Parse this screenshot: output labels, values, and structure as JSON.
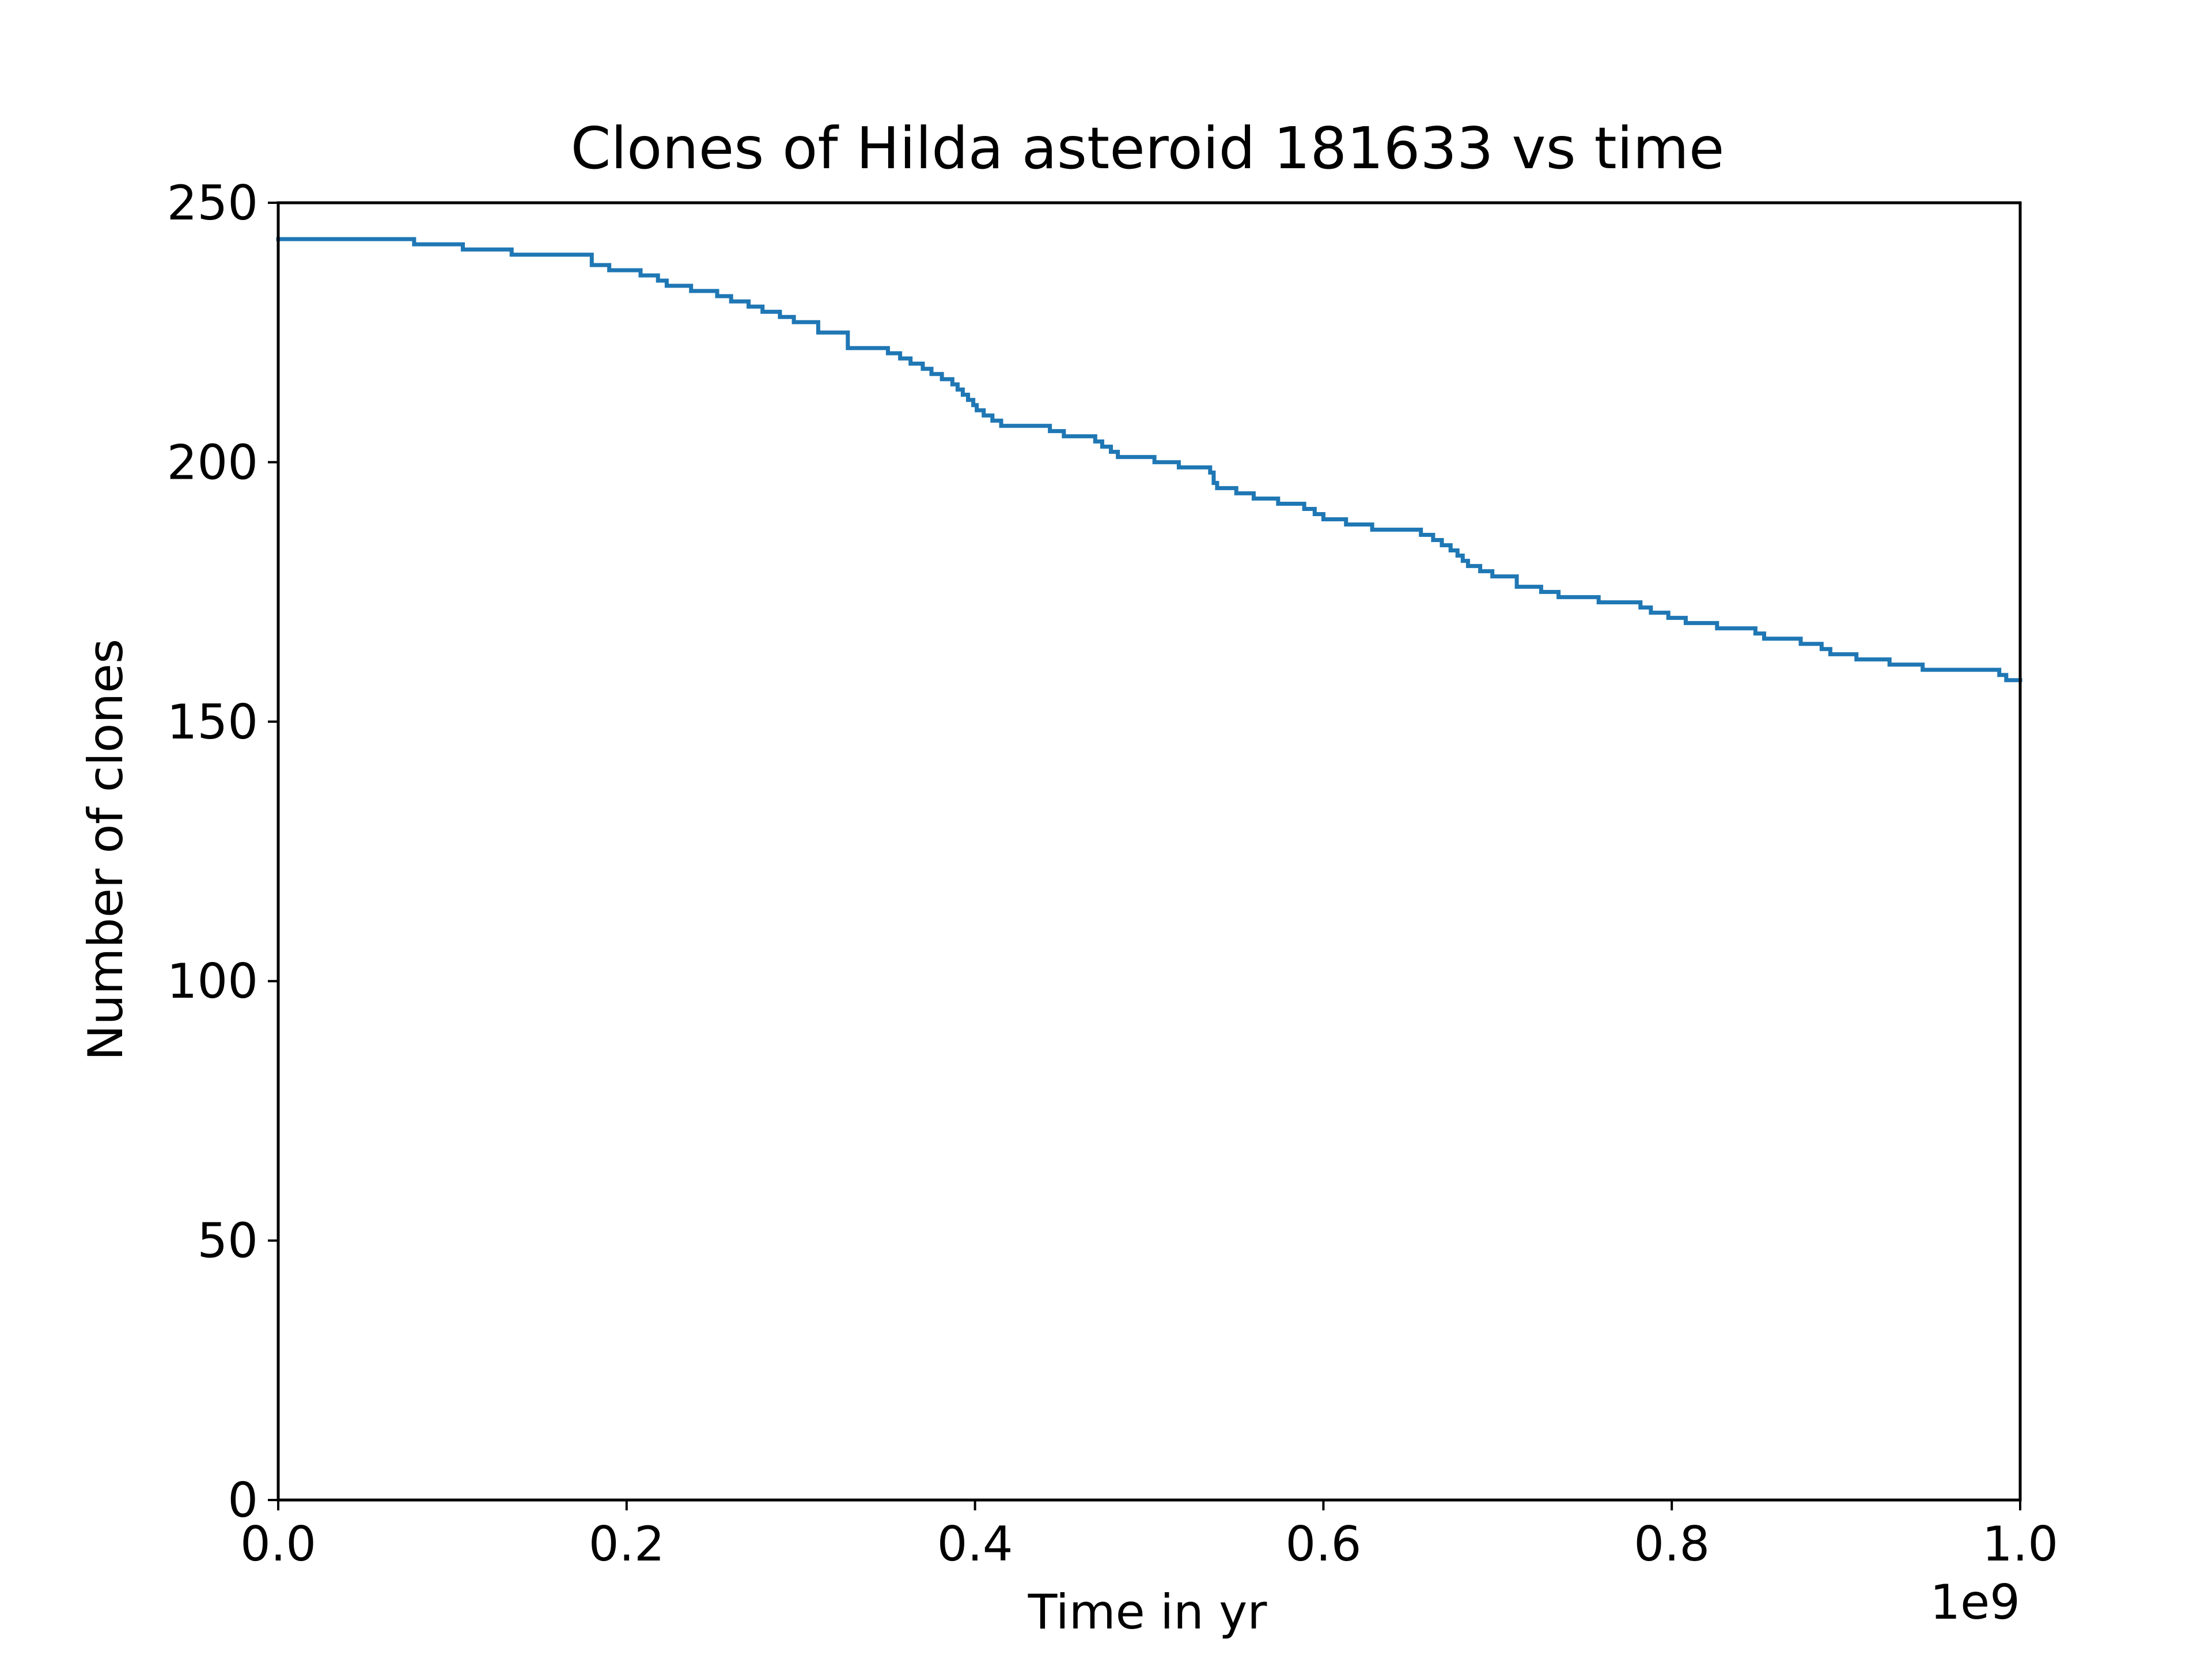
{
  "chart_data": {
    "type": "line",
    "title": "Clones of Hilda asteroid 181633 vs time",
    "xlabel": "Time in yr",
    "ylabel": "Number of clones",
    "x_offset_label": "1e9",
    "xlim": [
      0,
      1000000000
    ],
    "ylim": [
      0,
      250
    ],
    "xticks": [
      0,
      200000000,
      400000000,
      600000000,
      800000000,
      1000000000
    ],
    "xtick_labels": [
      "0.0",
      "0.2",
      "0.4",
      "0.6",
      "0.8",
      "1.0"
    ],
    "yticks": [
      0,
      50,
      100,
      150,
      200,
      250
    ],
    "ytick_labels": [
      "0",
      "50",
      "100",
      "150",
      "200",
      "250"
    ],
    "grid": false,
    "step": true,
    "series": [
      {
        "color": "#1f77b4",
        "points": [
          [
            0,
            243
          ],
          [
            78000000,
            242
          ],
          [
            106000000,
            241
          ],
          [
            134000000,
            240
          ],
          [
            180000000,
            238
          ],
          [
            190000000,
            237
          ],
          [
            208000000,
            236
          ],
          [
            218000000,
            235
          ],
          [
            223000000,
            234
          ],
          [
            237000000,
            233
          ],
          [
            252000000,
            232
          ],
          [
            260000000,
            231
          ],
          [
            270000000,
            230
          ],
          [
            278000000,
            229
          ],
          [
            288000000,
            228
          ],
          [
            296000000,
            227
          ],
          [
            310000000,
            225
          ],
          [
            327000000,
            222
          ],
          [
            350000000,
            221
          ],
          [
            357000000,
            220
          ],
          [
            363000000,
            219
          ],
          [
            370000000,
            218
          ],
          [
            375000000,
            217
          ],
          [
            381000000,
            216
          ],
          [
            387000000,
            215
          ],
          [
            390000000,
            214
          ],
          [
            393000000,
            213
          ],
          [
            396000000,
            212
          ],
          [
            399000000,
            211
          ],
          [
            401000000,
            210
          ],
          [
            405000000,
            209
          ],
          [
            410000000,
            208
          ],
          [
            415000000,
            207
          ],
          [
            443000000,
            206
          ],
          [
            451000000,
            205
          ],
          [
            469000000,
            204
          ],
          [
            473000000,
            203
          ],
          [
            478000000,
            202
          ],
          [
            482000000,
            201
          ],
          [
            503000000,
            200
          ],
          [
            517000000,
            199
          ],
          [
            535000000,
            198
          ],
          [
            537000000,
            196
          ],
          [
            539000000,
            195
          ],
          [
            550000000,
            194
          ],
          [
            560000000,
            193
          ],
          [
            574000000,
            192
          ],
          [
            589000000,
            191
          ],
          [
            595000000,
            190
          ],
          [
            600000000,
            189
          ],
          [
            613000000,
            188
          ],
          [
            628000000,
            187
          ],
          [
            656000000,
            186
          ],
          [
            663000000,
            185
          ],
          [
            668000000,
            184
          ],
          [
            673000000,
            183
          ],
          [
            677000000,
            182
          ],
          [
            680000000,
            181
          ],
          [
            683000000,
            180
          ],
          [
            690000000,
            179
          ],
          [
            697000000,
            178
          ],
          [
            711000000,
            176
          ],
          [
            725000000,
            175
          ],
          [
            735000000,
            174
          ],
          [
            758000000,
            173
          ],
          [
            782000000,
            172
          ],
          [
            788000000,
            171
          ],
          [
            798000000,
            170
          ],
          [
            808000000,
            169
          ],
          [
            826000000,
            168
          ],
          [
            848000000,
            167
          ],
          [
            853000000,
            166
          ],
          [
            874000000,
            165
          ],
          [
            886000000,
            164
          ],
          [
            891000000,
            163
          ],
          [
            906000000,
            162
          ],
          [
            925000000,
            161
          ],
          [
            944000000,
            160
          ],
          [
            988000000,
            159
          ],
          [
            992000000,
            158
          ],
          [
            1000000000,
            158
          ]
        ]
      }
    ]
  }
}
